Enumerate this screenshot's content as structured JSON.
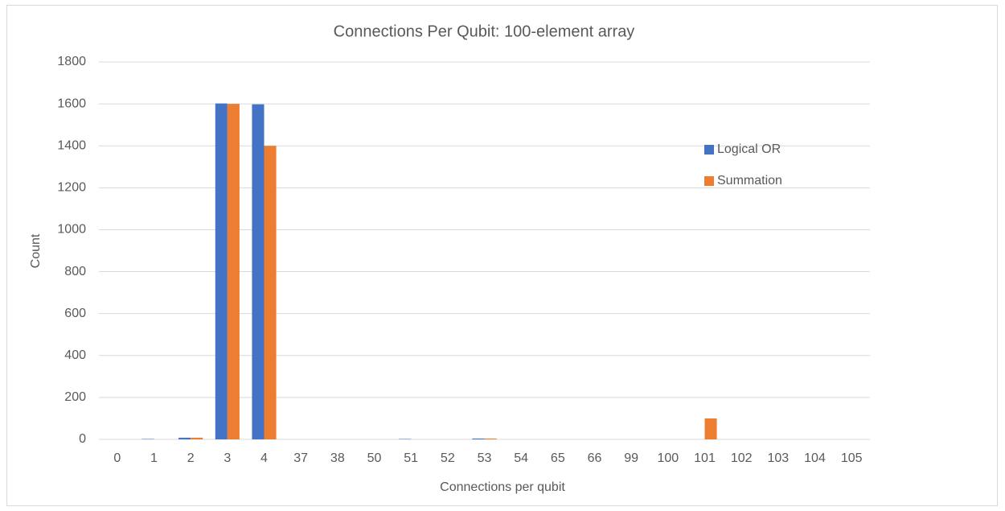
{
  "chart_data": {
    "type": "bar",
    "title": "Connections Per Qubit: 100-element array",
    "x_label": "Connections per qubit",
    "y_label": "Count",
    "categories": [
      "0",
      "1",
      "2",
      "3",
      "4",
      "37",
      "38",
      "50",
      "51",
      "52",
      "53",
      "54",
      "65",
      "66",
      "99",
      "100",
      "101",
      "102",
      "103",
      "104",
      "105"
    ],
    "series": [
      {
        "name": "Logical OR",
        "color": "#4472c4",
        "values": [
          0,
          2,
          8,
          1602,
          1598,
          0,
          0,
          0,
          2,
          0,
          4,
          0,
          0,
          0,
          0,
          0,
          0,
          0,
          0,
          0,
          0
        ]
      },
      {
        "name": "Summation",
        "color": "#ed7d31",
        "values": [
          0,
          0,
          8,
          1600,
          1400,
          0,
          0,
          0,
          0,
          0,
          4,
          0,
          0,
          0,
          0,
          0,
          100,
          0,
          0,
          0,
          0
        ]
      }
    ],
    "ylim": [
      0,
      1800
    ],
    "yticks": [
      0,
      200,
      400,
      600,
      800,
      1000,
      1200,
      1400,
      1600,
      1800
    ],
    "grid": true,
    "legend": "right"
  }
}
